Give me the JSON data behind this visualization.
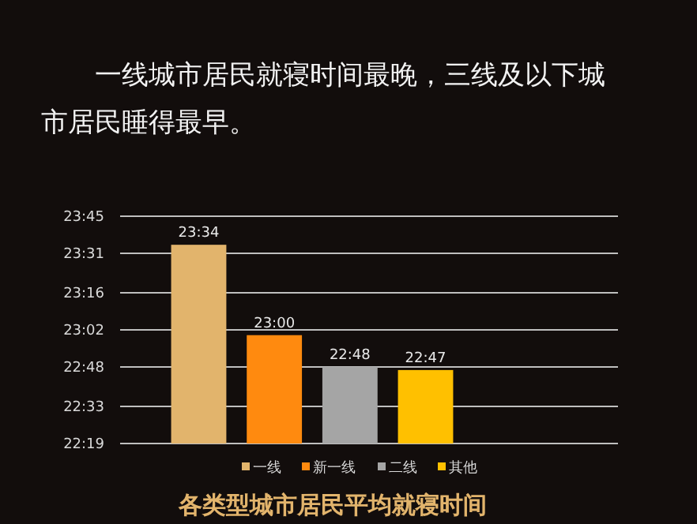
{
  "chart_data": {
    "type": "bar",
    "subtitle": "一线城市居民就寝时间最晚，三线及以下城市居民睡得最早。",
    "title": "各类型城市居民平均就寝时间",
    "categories": [
      null
    ],
    "series": [
      {
        "name": "一线",
        "color": "#e2b46c",
        "values": [
          23.57
        ],
        "value_labels": [
          "23:34"
        ]
      },
      {
        "name": "新一线",
        "color": "#ff8a0f",
        "values": [
          23.0
        ],
        "value_labels": [
          "23:00"
        ]
      },
      {
        "name": "二线",
        "color": "#a5a5a5",
        "values": [
          22.8
        ],
        "value_labels": [
          "22:48"
        ]
      },
      {
        "name": "其他",
        "color": "#ffc000",
        "values": [
          22.78
        ],
        "value_labels": [
          "22:47"
        ]
      }
    ],
    "ylim": [
      22.3167,
      23.75
    ],
    "yticks": [
      {
        "value": 22.3167,
        "label": "22:19"
      },
      {
        "value": 22.55,
        "label": "22:33"
      },
      {
        "value": 22.8,
        "label": "22:48"
      },
      {
        "value": 23.0333,
        "label": "23:02"
      },
      {
        "value": 23.2667,
        "label": "23:16"
      },
      {
        "value": 23.5167,
        "label": "23:31"
      },
      {
        "value": 23.75,
        "label": "23:45"
      }
    ],
    "grid": "y",
    "legend": "bottom",
    "tick_labels": "y"
  }
}
